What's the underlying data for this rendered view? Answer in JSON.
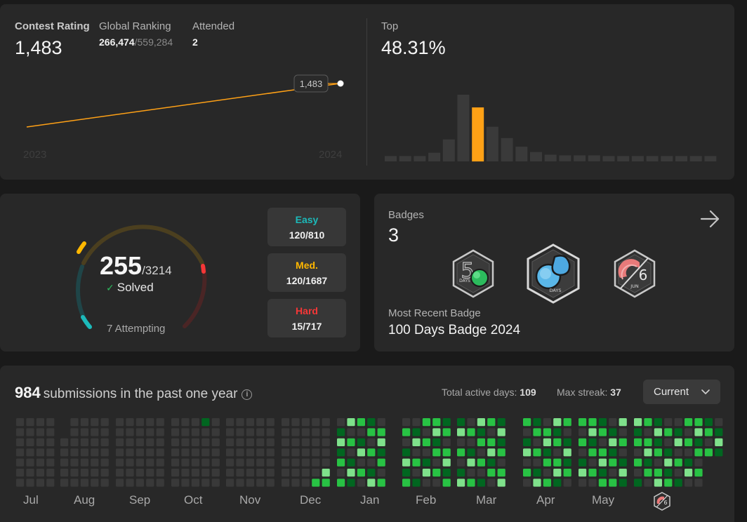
{
  "contest": {
    "rating_label": "Contest Rating",
    "rating_value": "1,483",
    "ranking_label": "Global Ranking",
    "ranking_value": "266,474",
    "ranking_total": "/559,284",
    "attended_label": "Attended",
    "attended_value": "2",
    "tooltip_value": "1,483",
    "year_start": "2023",
    "year_end": "2024",
    "top_label": "Top",
    "top_value": "48.31%",
    "line_color": "#ffa116",
    "histogram_relative_heights": [
      0.08,
      0.08,
      0.08,
      0.13,
      0.33,
      1.0,
      0.81,
      0.52,
      0.35,
      0.22,
      0.14,
      0.1,
      0.09,
      0.09,
      0.09,
      0.08,
      0.08,
      0.08,
      0.08,
      0.08,
      0.08,
      0.08,
      0.08
    ],
    "histogram_highlight_index": 6
  },
  "solved": {
    "count": "255",
    "total": "/3214",
    "label": "Solved",
    "attempting": "7 Attempting",
    "difficulties": [
      {
        "name": "Easy",
        "value": "120/810",
        "color": "#1cbaba"
      },
      {
        "name": "Med.",
        "value": "120/1687",
        "color": "#ffb700"
      },
      {
        "name": "Hard",
        "value": "15/717",
        "color": "#f63737"
      }
    ]
  },
  "badges": {
    "label": "Badges",
    "count": "3",
    "recent_label": "Most Recent Badge",
    "recent_value": "100 Days Badge 2024",
    "items": [
      {
        "name": "50 Days Badge",
        "text": "DAYS"
      },
      {
        "name": "100 Days Badge",
        "text": "DAYS"
      },
      {
        "name": "June Badge",
        "text": "JUN",
        "num": "6"
      }
    ]
  },
  "submissions": {
    "count": "984",
    "title_rest": "submissions in the past one year",
    "active_days_label": "Total active days:",
    "active_days_value": "109",
    "max_streak_label": "Max streak:",
    "max_streak_value": "37",
    "selector_value": "Current",
    "months": [
      "Jul",
      "Aug",
      "Sep",
      "Oct",
      "Nov",
      "Dec",
      "Jan",
      "Feb",
      "Mar",
      "Apr",
      "May"
    ],
    "colors": {
      "empty": "#393939",
      "level1": "#016620",
      "level2": "#28c244",
      "level3": "#7fe18b"
    }
  }
}
